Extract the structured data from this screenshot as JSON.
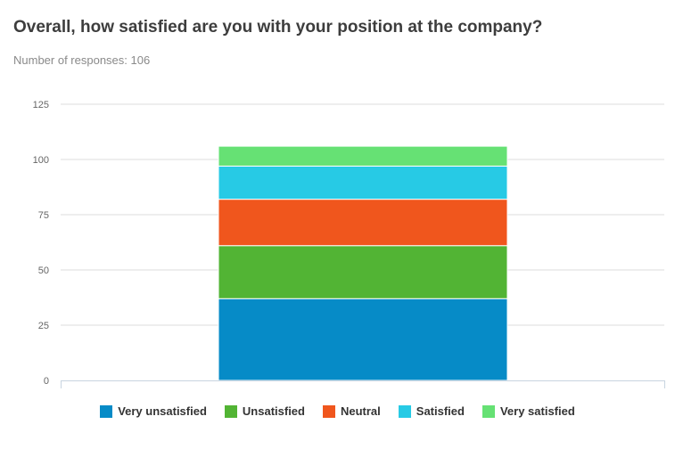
{
  "question": "Overall, how satisfied are you with your position at the company?",
  "responses_label": "Number of responses: 106",
  "chart_data": {
    "type": "bar",
    "stacked": true,
    "categories": [
      ""
    ],
    "series": [
      {
        "name": "Very unsatisfied",
        "values": [
          37
        ],
        "color": "#068bc7"
      },
      {
        "name": "Unsatisfied",
        "values": [
          24
        ],
        "color": "#52b434"
      },
      {
        "name": "Neutral",
        "values": [
          21
        ],
        "color": "#f0561d"
      },
      {
        "name": "Satisfied",
        "values": [
          15
        ],
        "color": "#27cae5"
      },
      {
        "name": "Very satisfied",
        "values": [
          9
        ],
        "color": "#66e174"
      }
    ],
    "total": 106,
    "ylim": [
      0,
      125
    ],
    "yticks": [
      0,
      25,
      50,
      75,
      100,
      125
    ],
    "grid": true,
    "legend_position": "bottom"
  }
}
